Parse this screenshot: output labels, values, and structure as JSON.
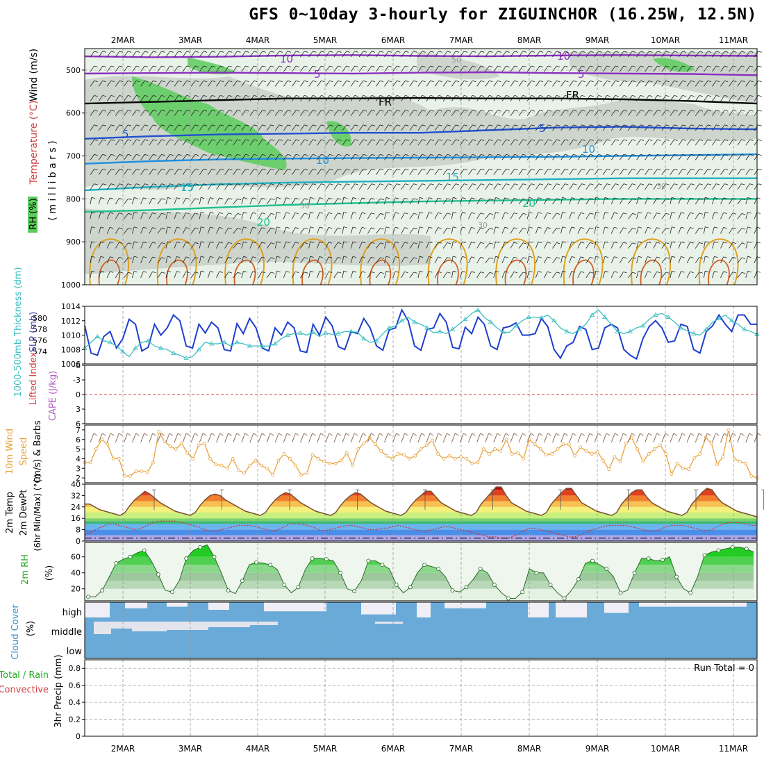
{
  "title": "GFS 0~10day 3-hourly for ZIGUINCHOR (16.25W, 12.5N)",
  "dates": [
    "2MAR",
    "3MAR",
    "4MAR",
    "5MAR",
    "6MAR",
    "7MAR",
    "8MAR",
    "9MAR",
    "10MAR",
    "11MAR"
  ],
  "colors": {
    "rh_green": "#5ccc5c",
    "rh_grey": "#c8d0c8",
    "rh_light": "#e8f2e8",
    "slp": "#1e3fcf",
    "thickness": "#3bbfc0",
    "wind_speed": "#e8a23a",
    "barbs": "#8a6a55",
    "temp_line": "#7a5030",
    "dewpt_line": "#cc3333",
    "rh2m": "#22cc22",
    "cloud": "#6aaad8",
    "cloud_gap": "#f0eef6"
  },
  "chart_data": [
    {
      "panel": "upper-air",
      "type": "heatmap",
      "ylabel_parts": [
        "RH (%)",
        "Temperature (°C)",
        "Wind (m/s)",
        "( m i l l i b a r s )"
      ],
      "yticks": [
        "500",
        "600",
        "700",
        "800",
        "900",
        "1000"
      ],
      "ylim": [
        1000,
        450
      ],
      "contour_labels": [
        "10",
        "5",
        "FR",
        "5",
        "10",
        "15",
        "20",
        "50",
        "30",
        "80"
      ],
      "isotherms": [
        {
          "label": "-10",
          "color": "#8a2fc0",
          "values": [
            468,
            470,
            469,
            466,
            465,
            467,
            468,
            466,
            465,
            466,
            467
          ]
        },
        {
          "label": "-5",
          "color": "#8a2fc0",
          "values": [
            508,
            507,
            506,
            507,
            508,
            506,
            505,
            507,
            508,
            509,
            512
          ]
        },
        {
          "label": "FR",
          "color": "#000000",
          "values": [
            578,
            574,
            570,
            566,
            566,
            565,
            566,
            566,
            568,
            572,
            578
          ]
        },
        {
          "label": "5",
          "color": "#2050d0",
          "values": [
            660,
            654,
            650,
            648,
            646,
            646,
            640,
            634,
            632,
            636,
            638
          ]
        },
        {
          "label": "10",
          "color": "#2090e0",
          "values": [
            718,
            712,
            708,
            706,
            705,
            704,
            703,
            702,
            700,
            698,
            696
          ]
        },
        {
          "label": "15",
          "color": "#20b0c0",
          "values": [
            780,
            772,
            766,
            762,
            760,
            758,
            756,
            754,
            752,
            752,
            752
          ]
        },
        {
          "label": "20",
          "color": "#20c090",
          "values": [
            830,
            826,
            820,
            814,
            810,
            806,
            804,
            802,
            800,
            800,
            800
          ]
        }
      ]
    },
    {
      "panel": "slp-thickness",
      "type": "line",
      "ylabel": "SLP (mb)",
      "ylabel2": "1000-500mb Thickness (dm)",
      "yticks": [
        "1014",
        "1012",
        "1010",
        "1008",
        "1006"
      ],
      "yticks2": [
        "580",
        "578",
        "576",
        "574"
      ],
      "ylim": [
        1006,
        1014
      ],
      "series": [
        {
          "name": "SLP",
          "values": [
            1011.3,
            1007.5,
            1007.2,
            1009.8,
            1010.5,
            1008.2,
            1009.5,
            1012.2,
            1011.5,
            1007.8,
            1008.3,
            1011.5,
            1010.0,
            1011.0,
            1012.8,
            1012.0,
            1008.5,
            1008.2,
            1011.5,
            1010.3,
            1011.8,
            1011.0,
            1008.0,
            1007.8,
            1011.6,
            1010.2,
            1012.3,
            1011.0,
            1008.2,
            1007.8,
            1011.0,
            1010.0,
            1011.8,
            1011.0,
            1007.8,
            1007.6,
            1011.5,
            1010.0,
            1012.5,
            1011.3,
            1008.4,
            1008.0,
            1010.5,
            1010.2,
            1012.3,
            1011.0,
            1008.5,
            1007.9,
            1010.7,
            1011.0,
            1013.5,
            1012.0,
            1008.5,
            1007.9,
            1010.8,
            1011.0,
            1013.0,
            1011.8,
            1008.3,
            1008.1,
            1011.1,
            1010.2,
            1012.5,
            1011.5,
            1008.5,
            1008.0,
            1011.0,
            1011.2,
            1011.7,
            1010.0,
            1010.0,
            1010.2,
            1012.3,
            1011.2,
            1008.0,
            1006.8,
            1008.5,
            1009.0,
            1011.2,
            1010.8,
            1008.0,
            1008.2,
            1011.0,
            1011.5,
            1011.0,
            1008.0,
            1007.2,
            1006.7,
            1009.5,
            1011.2,
            1012.0,
            1011.0,
            1009.0,
            1009.2,
            1011.5,
            1011.2,
            1008.0,
            1007.5,
            1010.5,
            1011.3,
            1012.8,
            1011.5,
            1010.5,
            1012.8,
            1012.8,
            1011.5,
            1011.5
          ]
        },
        {
          "name": "Thickness",
          "values": [
            1008.2,
            1009.0,
            1009.8,
            1009.2,
            1009.0,
            1008.5,
            1007.7,
            1007.0,
            1008.2,
            1009.0,
            1009.2,
            1008.5,
            1008.2,
            1008.0,
            1007.5,
            1007.2,
            1006.8,
            1007.0,
            1008.0,
            1009.0,
            1008.8,
            1008.8,
            1009.0,
            1008.5,
            1009.0,
            1008.8,
            1008.5,
            1008.5,
            1008.5,
            1008.5,
            1008.8,
            1009.5,
            1010.0,
            1010.2,
            1010.3,
            1010.0,
            1010.4,
            1009.8,
            1010.3,
            1010.1,
            1010.2,
            1010.5,
            1010.5,
            1010.4,
            1009.5,
            1009.0,
            1009.2,
            1010.2,
            1011.0,
            1011.3,
            1012.0,
            1012.5,
            1011.8,
            1011.5,
            1011.0,
            1010.3,
            1010.5,
            1010.2,
            1010.8,
            1011.5,
            1012.2,
            1013.0,
            1013.5,
            1012.5,
            1011.8,
            1011.0,
            1010.4,
            1010.4,
            1011.3,
            1012.0,
            1012.5,
            1012.5,
            1012.4,
            1012.8,
            1012.0,
            1011.0,
            1010.5,
            1010.2,
            1010.8,
            1011.5,
            1012.8,
            1013.5,
            1012.5,
            1011.5,
            1010.5,
            1010.2,
            1010.5,
            1011.0,
            1011.3,
            1012.2,
            1012.8,
            1013.0,
            1012.5,
            1011.8,
            1011.0,
            1010.6,
            1010.2,
            1010.0,
            1010.8,
            1011.8,
            1012.3,
            1012.8,
            1012.0,
            1011.5,
            1010.8,
            1010.5,
            1010.1
          ]
        }
      ]
    },
    {
      "panel": "lifted-index-cape",
      "type": "line",
      "ylabel": "Lifted Index",
      "ylabel2": "CAPE (J/kg)",
      "yticks": [
        "-6",
        "-3",
        "0",
        "3",
        "6"
      ],
      "ylim": [
        -6,
        6
      ],
      "series": []
    },
    {
      "panel": "wind10m",
      "type": "line",
      "ylabel_parts": [
        "10m Wind",
        "Speed",
        "(m/s) & Barbs"
      ],
      "yticks": [
        "7",
        "6",
        "5",
        "4",
        "3",
        "2"
      ],
      "ylim": [
        1.5,
        7.5
      ],
      "series": [
        {
          "name": "Speed",
          "values": [
            3.6,
            3.6,
            5.0,
            6.0,
            5.5,
            4.0,
            4.0,
            2.2,
            2.2,
            2.7,
            2.7,
            2.6,
            3.6,
            6.8,
            5.8,
            5.3,
            5.0,
            5.6,
            4.6,
            4.0,
            5.4,
            5.6,
            4.0,
            3.4,
            3.3,
            3.0,
            4.0,
            2.8,
            2.5,
            3.3,
            3.8,
            3.3,
            3.0,
            2.3,
            3.8,
            4.5,
            4.0,
            3.3,
            2.3,
            2.5,
            4.4,
            4.0,
            3.7,
            3.5,
            3.5,
            3.8,
            4.6,
            3.3,
            5.0,
            5.6,
            6.2,
            5.5,
            4.8,
            4.3,
            4.0,
            4.5,
            4.4,
            4.0,
            4.3,
            5.0,
            5.4,
            5.9,
            4.5,
            4.0,
            4.3,
            4.0,
            4.2,
            4.0,
            3.5,
            3.6,
            5.0,
            4.5,
            5.0,
            4.8,
            6.0,
            4.5,
            4.6,
            4.0,
            6.0,
            5.5,
            5.0,
            4.4,
            4.5,
            5.0,
            5.5,
            5.5,
            4.3,
            5.2,
            4.8,
            4.5,
            4.7,
            3.8,
            2.9,
            4.2,
            3.7,
            5.6,
            6.2,
            5.0,
            3.7,
            4.5,
            5.0,
            5.4,
            4.5,
            2.4,
            3.5,
            3.0,
            2.9,
            4.1,
            4.5,
            6.2,
            5.6,
            3.4,
            4.2,
            7.0,
            4.0,
            3.7,
            3.5,
            2.2,
            2.0
          ]
        }
      ]
    },
    {
      "panel": "temperature-2m",
      "type": "area",
      "ylabel_parts": [
        "2m Temp",
        "2m DewPt",
        "(6hr Min/Max) (°C)"
      ],
      "yticks": [
        "40",
        "32",
        "24",
        "16",
        "8",
        "0"
      ],
      "ylim": [
        0,
        40
      ],
      "series": [
        {
          "name": "Temp",
          "values": [
            26,
            26,
            24,
            22,
            21,
            20,
            19,
            18,
            20,
            25,
            29,
            32,
            35,
            33,
            30,
            27,
            25,
            23,
            21,
            20,
            19,
            18,
            20,
            25,
            29,
            32,
            33,
            32,
            29,
            27,
            25,
            23,
            21,
            20,
            19,
            18,
            20,
            25,
            29,
            32,
            34,
            33,
            30,
            27,
            25,
            23,
            21,
            20,
            19,
            18,
            20,
            25,
            29,
            32,
            34,
            33,
            30,
            27,
            25,
            23,
            21,
            20,
            19,
            18,
            20,
            25,
            29,
            32,
            35,
            35,
            31,
            27,
            25,
            23,
            21,
            20,
            19,
            18,
            20,
            26,
            30,
            34,
            38,
            38,
            32,
            27,
            25,
            23,
            21,
            20,
            19,
            18,
            20,
            26,
            30,
            34,
            37,
            37,
            32,
            27,
            25,
            23,
            21,
            20,
            19,
            18,
            20,
            26,
            30,
            34,
            36,
            36,
            31,
            27,
            25,
            23,
            21,
            20,
            19,
            18,
            20,
            26,
            30,
            34,
            37,
            36,
            31,
            27,
            25,
            23,
            21,
            20,
            19,
            18,
            17
          ]
        },
        {
          "name": "DewPt",
          "values": [
            4,
            6,
            8,
            10,
            12,
            12,
            11,
            10,
            9,
            8,
            9,
            11,
            13,
            14,
            14,
            14,
            14,
            13,
            12,
            11,
            10,
            8,
            7,
            7,
            8,
            9,
            10,
            11,
            11,
            11,
            10,
            9,
            8,
            7,
            8,
            10,
            12,
            12,
            12,
            11,
            10,
            8,
            7,
            8,
            9,
            10,
            11,
            11,
            10,
            9,
            8,
            8,
            9,
            9,
            10,
            11,
            10,
            9,
            8,
            7,
            7,
            8,
            9,
            10,
            10,
            9,
            8,
            7,
            6,
            5,
            4,
            3,
            3,
            2,
            2,
            3,
            5,
            7,
            9,
            9,
            8,
            7,
            6,
            5,
            4,
            3,
            3,
            4,
            6,
            8,
            9,
            10,
            11,
            11,
            11,
            11,
            10,
            9,
            8,
            7,
            7,
            8,
            10,
            11,
            11,
            11,
            10,
            9,
            8,
            7,
            8,
            10,
            12,
            13,
            13,
            13,
            12,
            11,
            11
          ]
        }
      ]
    },
    {
      "panel": "rh-2m",
      "type": "area",
      "ylabel": "2m RH",
      "ylabel_unit": "(%)",
      "yticks": [
        "60",
        "40",
        "20"
      ],
      "ylim": [
        5,
        78
      ],
      "series": [
        {
          "name": "RH",
          "values": [
            10,
            10,
            18,
            35,
            52,
            57,
            60,
            65,
            68,
            55,
            38,
            18,
            16,
            30,
            58,
            68,
            72,
            75,
            60,
            40,
            18,
            14,
            30,
            50,
            53,
            52,
            50,
            44,
            25,
            15,
            22,
            44,
            58,
            58,
            57,
            55,
            40,
            20,
            17,
            30,
            55,
            55,
            50,
            45,
            25,
            15,
            22,
            40,
            50,
            48,
            45,
            35,
            18,
            16,
            22,
            32,
            45,
            40,
            25,
            15,
            8,
            8,
            16,
            45,
            40,
            40,
            25,
            15,
            8,
            18,
            32,
            52,
            55,
            50,
            45,
            35,
            15,
            18,
            40,
            58,
            58,
            55,
            56,
            60,
            35,
            20,
            15,
            35,
            62,
            66,
            68,
            70,
            72,
            72,
            70,
            66
          ]
        }
      ]
    },
    {
      "panel": "cloud-cover",
      "type": "bar",
      "ylabel": "Cloud Cover",
      "ylabel_unit": "(%)",
      "categories": [
        "high",
        "middle",
        "low"
      ]
    },
    {
      "panel": "precip",
      "type": "bar",
      "ylabel_parts": [
        "Total / Rain",
        "Convective",
        "3hr Precip (mm)"
      ],
      "yticks": [
        "0.8",
        "0.6",
        "0.4",
        "0.2",
        "0"
      ],
      "ylim": [
        0,
        0.9
      ],
      "annotation": "Run Total = 0",
      "values": []
    }
  ]
}
